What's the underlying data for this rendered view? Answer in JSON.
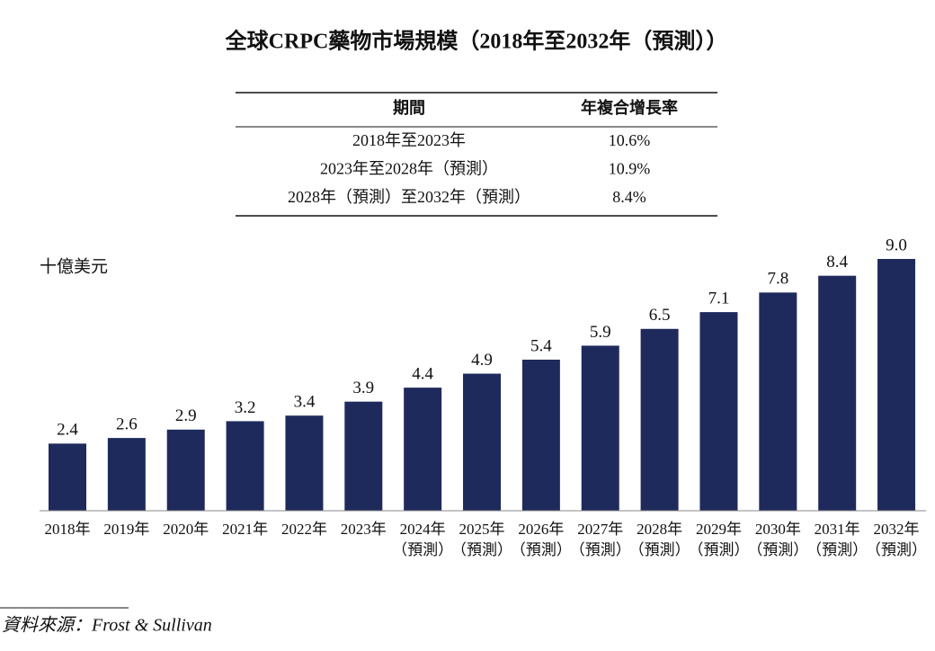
{
  "chart_data": {
    "type": "bar",
    "title": "全球CRPC藥物市場規模（2018年至2032年（預測））",
    "y_label": "十億美元",
    "categories": [
      [
        "2018年"
      ],
      [
        "2019年"
      ],
      [
        "2020年"
      ],
      [
        "2021年"
      ],
      [
        "2022年"
      ],
      [
        "2023年"
      ],
      [
        "2024年",
        "（預測）"
      ],
      [
        "2025年",
        "（預測）"
      ],
      [
        "2026年",
        "（預測）"
      ],
      [
        "2027年",
        "（預測）"
      ],
      [
        "2028年",
        "（預測）"
      ],
      [
        "2029年",
        "（預測）"
      ],
      [
        "2030年",
        "（預測）"
      ],
      [
        "2031年",
        "（預測）"
      ],
      [
        "2032年",
        "（預測）"
      ]
    ],
    "values": [
      2.4,
      2.6,
      2.9,
      3.2,
      3.4,
      3.9,
      4.4,
      4.9,
      5.4,
      5.9,
      6.5,
      7.1,
      7.8,
      8.4,
      9.0
    ],
    "value_labels": [
      "2.4",
      "2.6",
      "2.9",
      "3.2",
      "3.4",
      "3.9",
      "4.4",
      "4.9",
      "5.4",
      "5.9",
      "6.5",
      "7.1",
      "7.8",
      "8.4",
      "9.0"
    ],
    "color": "#1f2a5c"
  },
  "table": {
    "header": [
      "期間",
      "年複合增長率"
    ],
    "rows": [
      [
        "2018年至2023年",
        "10.6%"
      ],
      [
        "2023年至2028年（預測）",
        "10.9%"
      ],
      [
        "2028年（預測）至2032年（預測）",
        "8.4%"
      ]
    ]
  },
  "source": "資料來源：Frost & Sullivan"
}
